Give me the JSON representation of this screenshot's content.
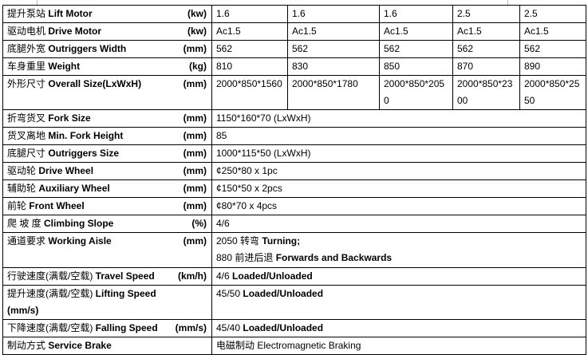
{
  "rows": [
    {
      "cn": "提升泵站",
      "en": "Lift Motor",
      "unit": "(kw)",
      "values": [
        "1.6",
        "1.6",
        "1.6",
        "2.5",
        "2.5"
      ]
    },
    {
      "cn": "驱动电机",
      "en": "Drive Motor",
      "unit": "(kw)",
      "values": [
        "Ac1.5",
        "Ac1.5",
        "Ac1.5",
        "Ac1.5",
        "Ac1.5"
      ]
    },
    {
      "cn": "底腿外宽",
      "en": "Outriggers Width",
      "unit": "(mm)",
      "values": [
        "562",
        "562",
        "562",
        "562",
        "562"
      ]
    },
    {
      "cn": "车身重里",
      "en": "Weight",
      "unit": "(kg)",
      "values": [
        "810",
        "830",
        "850",
        "870",
        "890"
      ]
    },
    {
      "cn": "外形尺寸",
      "en": "Overall Size(LxWxH)",
      "unit": "(mm)",
      "values": [
        "2000*850*1560",
        "2000*850*1780",
        "2000*850*2050",
        "2000*850*2300",
        "2000*850*2550"
      ]
    },
    {
      "cn": "折弯货叉",
      "en": "Fork Size",
      "unit": "(mm)",
      "value": "1150*160*70 (LxWxH)"
    },
    {
      "cn": "货叉离地",
      "en": "Min. Fork Height",
      "unit": "(mm)",
      "value": "85"
    },
    {
      "cn": "底腿尺寸",
      "en": "Outriggers Size",
      "unit": "(mm)",
      "value": "1000*115*50 (LxWxH)"
    },
    {
      "cn": "驱动轮",
      "en": "Drive Wheel",
      "unit": "(mm)",
      "value": "¢250*80 x 1pc"
    },
    {
      "cn": "辅助轮",
      "en": "Auxiliary Wheel",
      "unit": "(mm)",
      "value": "¢150*50 x 2pcs"
    },
    {
      "cn": "前轮",
      "en": "Front Wheel",
      "unit": "(mm)",
      "value": "¢80*70 x 4pcs"
    },
    {
      "cn": "爬 坡 度",
      "en": "Climbing Slope",
      "unit": "(%)",
      "value": "4/6"
    },
    {
      "cn": "通道要求",
      "en": "Working Aisle",
      "unit": "(mm)",
      "value_line1_cn": "2050 转弯",
      "value_line1_en": "Turning;",
      "value_line2_cn": "880 前进后退",
      "value_line2_en": "Forwards and Backwards"
    },
    {
      "cn": "行驶速度(满载/空载)",
      "en": "Travel Speed",
      "unit": "(km/h)",
      "value_num": "4/6",
      "value_en": "Loaded/Unloaded"
    },
    {
      "cn": "提升速度(满载/空载)",
      "en": "Lifting Speed",
      "unit": "(mm/s)",
      "value_num": "45/50",
      "value_en": "Loaded/Unloaded"
    },
    {
      "cn": "下降速度(满载/空载)",
      "en": "Falling Speed",
      "unit": "(mm/s)",
      "value_num": "45/40",
      "value_en": "Loaded/Unloaded"
    },
    {
      "cn": "制动方式",
      "en": "Service Brake",
      "value_cn": "电磁制动",
      "value_en": "Electromagnetic Braking"
    }
  ]
}
